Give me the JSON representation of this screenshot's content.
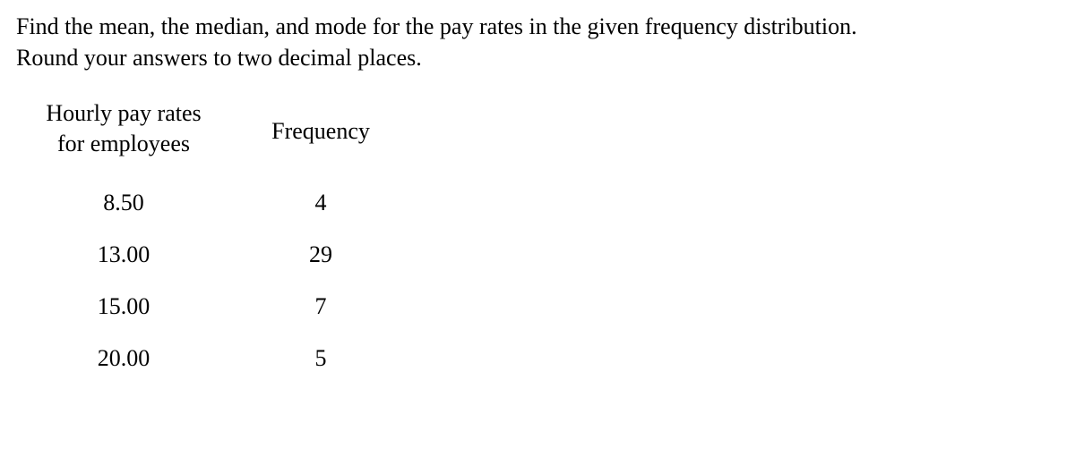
{
  "prompt": {
    "line1": "Find the mean, the median, and mode for the pay rates in the given frequency distribution.",
    "line2": "Round your answers to two decimal places."
  },
  "table": {
    "headers": {
      "col1_line1": "Hourly pay rates",
      "col1_line2": "for employees",
      "col2": "Frequency"
    },
    "rows": [
      {
        "rate": "8.50",
        "freq": "4"
      },
      {
        "rate": "13.00",
        "freq": "29"
      },
      {
        "rate": "15.00",
        "freq": "7"
      },
      {
        "rate": "20.00",
        "freq": "5"
      }
    ]
  }
}
